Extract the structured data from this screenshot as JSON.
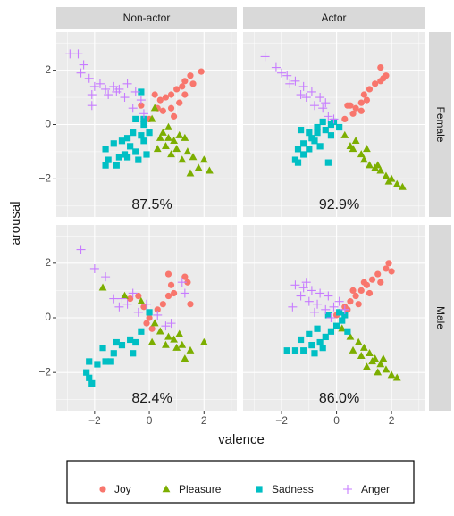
{
  "chart_data": {
    "type": "scatter",
    "xlabel": "valence",
    "ylabel": "arousal",
    "xlim": [
      -3.4,
      3.2
    ],
    "ylim": [
      -3.4,
      3.4
    ],
    "xticks": [
      {
        "value": -2,
        "label": "−2"
      },
      0,
      2
    ],
    "yticks": [
      {
        "value": -2,
        "label": "−2"
      },
      0,
      2
    ],
    "xminor": [
      -3,
      -1,
      1,
      3
    ],
    "yminor": [
      -3,
      -1,
      1,
      3
    ],
    "grid": true,
    "legend_position": "bottom",
    "columns": [
      "Non-actor",
      "Actor"
    ],
    "rows": [
      "Female",
      "Male"
    ],
    "series": [
      {
        "name": "Joy",
        "color": "#F8766D",
        "marker": "circle"
      },
      {
        "name": "Pleasure",
        "color": "#7CAE00",
        "marker": "triangle"
      },
      {
        "name": "Sadness",
        "color": "#00BFC4",
        "marker": "square"
      },
      {
        "name": "Anger",
        "color": "#C77CFF",
        "marker": "plus"
      }
    ],
    "panels": [
      {
        "annotation": "87.5%",
        "series": [
          {
            "x": [
              1.9,
              1.5,
              1.3,
              1.2,
              1.0,
              0.8,
              0.6,
              0.4,
              0.2,
              0.8,
              1.1,
              0.5,
              0.9,
              1.3,
              1.6,
              0.3,
              0.0,
              -0.3
            ],
            "y": [
              1.95,
              1.8,
              1.6,
              1.4,
              1.3,
              1.1,
              1.0,
              0.9,
              1.1,
              0.6,
              0.8,
              0.5,
              0.3,
              1.1,
              1.5,
              0.6,
              0.2,
              0.7
            ]
          },
          {
            "x": [
              0.2,
              0.1,
              0.5,
              0.7,
              0.9,
              1.1,
              1.3,
              0.6,
              1.0,
              1.4,
              1.2,
              1.6,
              1.8,
              2.2,
              1.5,
              0.8,
              0.3,
              2.0,
              0.7,
              0.4
            ],
            "y": [
              0.6,
              0.2,
              -0.3,
              -0.5,
              -0.6,
              -0.4,
              -0.5,
              -0.8,
              -0.9,
              -1.0,
              -1.3,
              -1.2,
              -1.6,
              -1.7,
              -1.8,
              -1.1,
              -0.9,
              -1.3,
              -0.1,
              -0.5
            ]
          },
          {
            "x": [
              -0.3,
              -0.5,
              -0.2,
              -0.6,
              -0.8,
              -1.0,
              -1.3,
              -1.6,
              -1.5,
              -1.6,
              -1.2,
              -0.8,
              -0.5,
              -0.2,
              -0.1,
              -0.4,
              -0.9,
              -0.3,
              0.0,
              -0.7,
              -1.1,
              -0.2
            ],
            "y": [
              1.2,
              0.2,
              0.0,
              -0.3,
              -0.5,
              -0.6,
              -0.7,
              -0.9,
              -1.3,
              -1.5,
              -1.5,
              -1.2,
              -1.0,
              -0.6,
              -1.1,
              -1.3,
              -1.1,
              -0.4,
              -0.3,
              -0.8,
              -1.2,
              0.2
            ]
          },
          {
            "x": [
              -2.9,
              -2.6,
              -2.4,
              -2.5,
              -2.2,
              -2.0,
              -1.8,
              -1.6,
              -1.3,
              -1.1,
              -0.8,
              -0.5,
              -0.3,
              -0.9,
              -1.5,
              -2.1,
              -2.1,
              -0.6,
              -0.2,
              -1.2
            ],
            "y": [
              2.6,
              2.6,
              2.2,
              1.9,
              1.7,
              1.4,
              1.5,
              1.3,
              1.4,
              1.3,
              1.5,
              1.2,
              0.9,
              1.0,
              1.1,
              1.1,
              0.7,
              0.6,
              0.4,
              1.2
            ]
          }
        ]
      },
      {
        "annotation": "92.9%",
        "series": [
          {
            "x": [
              1.6,
              1.8,
              1.4,
              1.6,
              1.2,
              1.0,
              0.9,
              0.7,
              0.5,
              0.6,
              0.3,
              1.1,
              1.7,
              0.9,
              0.4
            ],
            "y": [
              2.1,
              1.8,
              1.5,
              1.6,
              1.3,
              1.1,
              0.8,
              0.6,
              0.7,
              0.4,
              0.2,
              0.9,
              1.7,
              0.5,
              0.7
            ]
          },
          {
            "x": [
              0.3,
              0.6,
              0.9,
              1.0,
              1.2,
              1.4,
              1.6,
              1.8,
              2.0,
              2.2,
              2.4,
              1.1,
              0.7,
              1.5,
              0.5,
              1.9
            ],
            "y": [
              -0.4,
              -0.9,
              -1.1,
              -1.3,
              -1.5,
              -1.6,
              -1.7,
              -1.9,
              -2.0,
              -2.2,
              -2.3,
              -0.9,
              -0.6,
              -1.5,
              -0.8,
              -2.1
            ]
          },
          {
            "x": [
              -1.3,
              -1.0,
              -0.7,
              -0.4,
              -0.2,
              -0.5,
              -0.9,
              -1.2,
              -1.4,
              -1.2,
              -1.5,
              -1.4,
              -0.8,
              -0.6,
              -0.2,
              -1.0,
              0.1,
              -0.1,
              -0.3,
              -0.7
            ],
            "y": [
              -0.2,
              -0.3,
              -0.3,
              -0.2,
              0.0,
              0.1,
              -0.5,
              -0.7,
              -0.9,
              -1.1,
              -1.3,
              -1.4,
              -0.6,
              -0.8,
              -0.4,
              -0.9,
              -0.1,
              0.1,
              -1.4,
              -0.1
            ]
          },
          {
            "x": [
              -2.6,
              -2.2,
              -1.8,
              -1.5,
              -1.2,
              -0.9,
              -0.6,
              -0.4,
              -0.8,
              -1.1,
              -1.3,
              -0.3,
              -0.1,
              -0.5,
              -1.7,
              -2.0
            ],
            "y": [
              2.5,
              2.1,
              1.8,
              1.6,
              1.4,
              1.2,
              1.0,
              0.8,
              0.7,
              1.0,
              1.1,
              0.3,
              0.2,
              0.6,
              1.5,
              1.9
            ]
          }
        ]
      },
      {
        "annotation": "82.4%",
        "series": [
          {
            "x": [
              1.3,
              1.4,
              0.7,
              0.8,
              0.9,
              0.7,
              0.5,
              0.3,
              -0.1,
              -0.4,
              -0.7,
              0.1,
              1.5,
              -0.2,
              0.0
            ],
            "y": [
              1.5,
              1.3,
              1.6,
              1.2,
              0.9,
              0.8,
              0.5,
              0.3,
              -0.2,
              0.8,
              0.7,
              -0.4,
              0.5,
              0.4,
              0.0
            ]
          },
          {
            "x": [
              -1.7,
              -0.9,
              -0.3,
              0.4,
              0.7,
              0.9,
              1.2,
              1.5,
              1.3,
              2.0,
              1.0,
              0.6,
              0.2,
              1.1,
              0.1
            ],
            "y": [
              1.1,
              0.8,
              0.6,
              -0.5,
              -0.7,
              -0.8,
              -1.0,
              -1.2,
              -1.5,
              -0.9,
              -1.1,
              -1.0,
              -0.2,
              -0.6,
              -0.9
            ]
          },
          {
            "x": [
              -2.2,
              -2.3,
              -2.2,
              -2.1,
              -1.9,
              -1.6,
              -1.3,
              -1.7,
              -1.0,
              -0.7,
              -0.5,
              -0.3,
              0.0,
              -0.6,
              -1.2,
              -1.4
            ],
            "y": [
              -1.6,
              -2.0,
              -2.2,
              -2.4,
              -1.7,
              -1.6,
              -1.3,
              -1.1,
              -1.0,
              -0.8,
              -0.9,
              -0.5,
              0.2,
              -1.3,
              -0.9,
              -1.6
            ]
          },
          {
            "x": [
              -2.5,
              -2.0,
              -1.6,
              -1.3,
              -1.1,
              -0.8,
              -0.4,
              -0.1,
              0.3,
              0.6,
              1.2,
              1.3,
              -0.6,
              0.8,
              -1.0
            ],
            "y": [
              2.5,
              1.8,
              1.5,
              0.7,
              0.4,
              0.5,
              0.2,
              0.5,
              0.1,
              -0.3,
              1.3,
              0.9,
              0.9,
              -0.2,
              0.7
            ]
          }
        ]
      },
      {
        "annotation": "86.0%",
        "series": [
          {
            "x": [
              1.9,
              1.8,
              1.5,
              1.3,
              1.1,
              0.9,
              0.7,
              0.5,
              0.3,
              0.1,
              1.6,
              1.2,
              0.8,
              0.4,
              2.0,
              1.0,
              0.0,
              0.6
            ],
            "y": [
              2.0,
              1.8,
              1.6,
              1.4,
              1.2,
              1.0,
              0.8,
              0.6,
              0.4,
              0.2,
              1.3,
              0.9,
              0.5,
              0.3,
              1.7,
              1.3,
              0.1,
              1.0
            ]
          },
          {
            "x": [
              0.8,
              1.0,
              1.2,
              1.4,
              1.6,
              1.8,
              2.0,
              2.2,
              1.3,
              0.9,
              1.5,
              0.5,
              0.2,
              1.7,
              0.6,
              1.1
            ],
            "y": [
              -0.9,
              -1.1,
              -1.3,
              -1.5,
              -1.7,
              -1.9,
              -2.1,
              -2.2,
              -1.6,
              -1.4,
              -2.0,
              -0.7,
              -0.4,
              -1.5,
              -1.2,
              -1.8
            ]
          },
          {
            "x": [
              -1.8,
              -1.5,
              -1.2,
              -0.9,
              -0.6,
              -0.4,
              -0.2,
              0.0,
              0.2,
              -0.3,
              0.1,
              -1.0,
              -0.7,
              -1.3,
              0.4,
              -0.5,
              -0.8,
              0.3
            ],
            "y": [
              -1.2,
              -1.2,
              -1.2,
              -1.0,
              -0.9,
              -0.7,
              -0.5,
              -0.3,
              -0.1,
              0.1,
              0.2,
              -0.6,
              -0.4,
              -0.8,
              -0.5,
              -1.1,
              -1.3,
              0.1
            ]
          },
          {
            "x": [
              -1.5,
              -1.2,
              -0.9,
              -0.6,
              -0.3,
              -1.0,
              -0.7,
              -0.4,
              -1.3,
              -0.1,
              0.3,
              -1.6,
              -0.8,
              -0.2,
              -1.1,
              0.1
            ],
            "y": [
              1.2,
              1.1,
              1.0,
              0.9,
              0.8,
              0.6,
              0.5,
              0.3,
              0.8,
              0.4,
              0.3,
              0.4,
              0.2,
              0.0,
              1.3,
              0.6
            ]
          }
        ]
      }
    ]
  }
}
